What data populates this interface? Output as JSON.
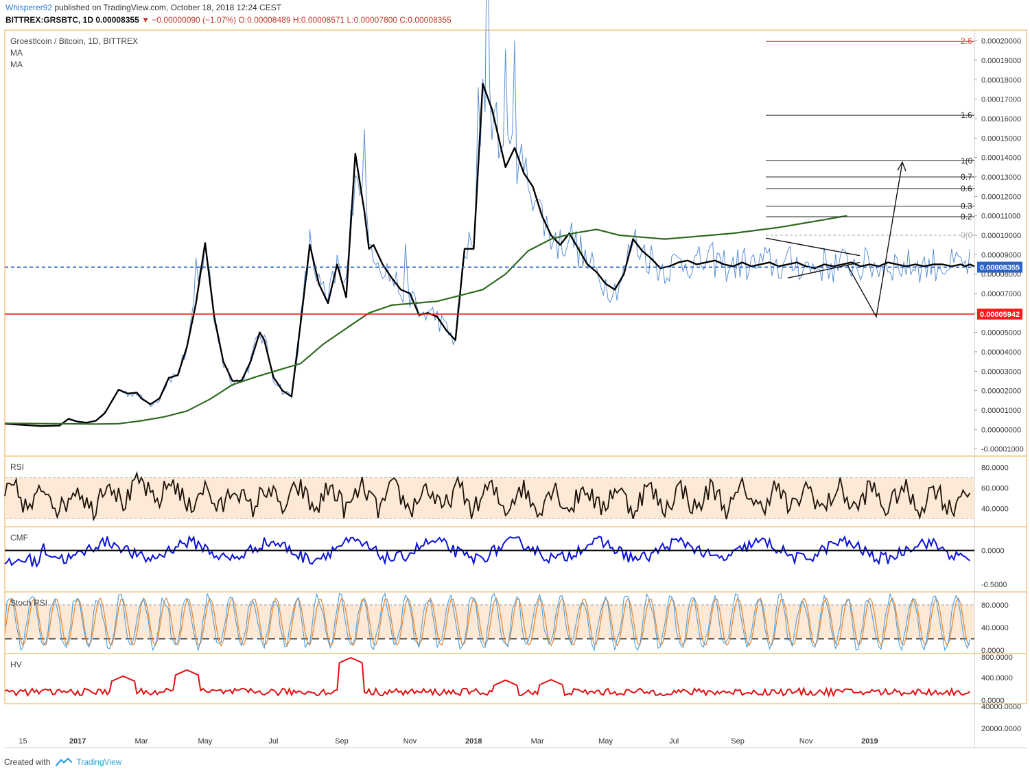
{
  "header": {
    "author": "Whisperer92",
    "published_text": "published on TradingView.com, October 18, 2018 12:24 CEST",
    "symbol_line": "BITTREX:GRSBTC, 1D 0.00008355",
    "change": "▼ −0.00000090 (−1.07%)",
    "ohlc": "O:0.00008489 H:0.00008571 L:0.00007800 C:0.00008355"
  },
  "legend": {
    "title": "Groestlcoin / Bitcoin, 1D, BITTREX",
    "ma1": "MA",
    "ma2": "MA"
  },
  "footer": {
    "created_with": "Created with",
    "brand": "TradingView"
  },
  "colors": {
    "price": "#5b8fd6",
    "ma_fast": "#000000",
    "ma_slow": "#2e6b1f",
    "support": "#ff1a1a",
    "current": "#2a63c7",
    "rsi": "#1a1209",
    "cmf": "#0b12d9",
    "stoch_k": "#4a9fe0",
    "stoch_d": "#e38a3c",
    "hv": "#e01010",
    "band_fill": "#fde9d6",
    "pane_border": "#f0a844"
  },
  "chart_data": [
    {
      "type": "line",
      "pane": "price",
      "title": "Groestlcoin / Bitcoin, 1D, BITTREX",
      "x_ticks": [
        "15",
        "2017",
        "Mar",
        "May",
        "Jul",
        "Sep",
        "Nov",
        "2018",
        "Mar",
        "May",
        "Jul",
        "Sep",
        "Nov",
        "2019"
      ],
      "y_ticks": [
        "0.00020000",
        "0.00019000",
        "0.00018000",
        "0.00017000",
        "0.00016000",
        "0.00015000",
        "0.00014000",
        "0.00013000",
        "0.00012000",
        "0.00011000",
        "0.00010000",
        "0.00009000",
        "0.00008000",
        "0.00007000",
        "0.00006000",
        "0.00005000",
        "0.00004000",
        "0.00003000",
        "0.00002000",
        "0.00001000",
        "0.00000000",
        "-0.00001000"
      ],
      "ylim": [
        -1.05e-05,
        0.000202
      ],
      "series": [
        {
          "name": "MA",
          "role": "ma_fast",
          "x": [
            0,
            3,
            8,
            12,
            14,
            16,
            18,
            20,
            22,
            25,
            27,
            29,
            30,
            32,
            34,
            36,
            38,
            40,
            42,
            44,
            46,
            48,
            50,
            52,
            54,
            56,
            57,
            59,
            61,
            63,
            65,
            67,
            69,
            71,
            73,
            75,
            77,
            79,
            80,
            81,
            83,
            85,
            87,
            89,
            91,
            93,
            95,
            97,
            99,
            101,
            103,
            105,
            107,
            108,
            110,
            112,
            114,
            116,
            118,
            120,
            122,
            124,
            126,
            128,
            130,
            132,
            134,
            136,
            138,
            140,
            142,
            144,
            146,
            148,
            150,
            152,
            154,
            156,
            158,
            160,
            162,
            164,
            166,
            168,
            170,
            172,
            174,
            176,
            178,
            180,
            182,
            184,
            186,
            188,
            190,
            192,
            194,
            196,
            198,
            200,
            202,
            204,
            206,
            208,
            210,
            211,
            212,
            213
          ],
          "values": [
            3e-06,
            2.5e-06,
            1.8e-06,
            2e-06,
            5.5e-06,
            4e-06,
            3.5e-06,
            4.5e-06,
            8.5e-06,
            2.05e-05,
            1.85e-05,
            1.9e-05,
            1.6e-05,
            1.3e-05,
            1.6e-05,
            2.65e-05,
            2.8e-05,
            4.25e-05,
            6.5e-05,
            9.6e-05,
            5.8e-05,
            3.5e-05,
            2.5e-05,
            2.5e-05,
            3.5e-05,
            5e-05,
            4.6e-05,
            2.7e-05,
            2e-05,
            1.7e-05,
            5.5e-05,
            9.5e-05,
            7.5e-05,
            6.5e-05,
            8.5e-05,
            6.8e-05,
            0.000142,
            0.000112,
            9.3e-05,
            9.5e-05,
            8.5e-05,
            7.8e-05,
            7.2e-05,
            7e-05,
            5.9e-05,
            6e-05,
            5.8e-05,
            5.1e-05,
            4.6e-05,
            9.3e-05,
            9.3e-05,
            0.000178,
            0.000165,
            0.000155,
            0.000135,
            0.000145,
            0.000132,
            0.000125,
            0.00011,
            0.0001,
            9.5e-05,
            0.000101,
            9.3e-05,
            8.5e-05,
            8.1e-05,
            7.5e-05,
            7.2e-05,
            8e-05,
            9.8e-05,
            9.2e-05,
            8.8e-05,
            8.3e-05,
            8.4e-05,
            8.6e-05,
            8.7e-05,
            8.5e-05,
            8.6e-05,
            8.7e-05,
            8.5e-05,
            8.4e-05,
            8.6e-05,
            8.4e-05,
            8.5e-05,
            8.6e-05,
            8.4e-05,
            8.5e-05,
            8.6e-05,
            8.4e-05,
            8.3e-05,
            8.5e-05,
            8.4e-05,
            8.5e-05,
            8.6e-05,
            8.4e-05,
            8.5e-05,
            8.4e-05,
            8.6e-05,
            8.5e-05,
            8.4e-05,
            8.5e-05,
            8.4e-05,
            8.5e-05,
            8.5e-05,
            8.4e-05,
            8.5e-05,
            8.4e-05,
            8.5e-05,
            8.4e-05
          ]
        },
        {
          "name": "MA",
          "role": "ma_slow",
          "x": [
            0,
            20,
            25,
            30,
            35,
            40,
            45,
            50,
            55,
            60,
            65,
            70,
            75,
            80,
            85,
            90,
            95,
            100,
            105,
            110,
            115,
            120,
            125,
            130,
            135,
            140,
            145,
            150,
            155,
            160,
            165,
            170,
            175,
            180,
            185
          ],
          "values": [
            3.2e-06,
            2.8e-06,
            3e-06,
            4.5e-06,
            6.5e-06,
            9.5e-06,
            1.55e-05,
            2.3e-05,
            2.7e-05,
            3.05e-05,
            3.4e-05,
            4.4e-05,
            5.2e-05,
            6e-05,
            6.4e-05,
            6.5e-05,
            6.6e-05,
            6.9e-05,
            7.2e-05,
            8e-05,
            9.2e-05,
            9.8e-05,
            0.000101,
            0.000103,
            0.0001,
            9.9e-05,
            9.8e-05,
            9.9e-05,
            0.0001,
            0.000101,
            0.0001025,
            0.000104,
            0.000106,
            0.000108,
            0.00011
          ]
        }
      ],
      "annotations": {
        "fib_levels": [
          {
            "label": "2.6",
            "value": 0.0001998
          },
          {
            "label": "1.6",
            "value": 0.0001617
          },
          {
            "label": "1(0",
            "value": 0.0001383
          },
          {
            "label": "0.7",
            "value": 0.00013
          },
          {
            "label": "0.6",
            "value": 0.000124
          },
          {
            "label": "0.3",
            "value": 0.000115
          },
          {
            "label": "0.2",
            "value": 0.0001095
          },
          {
            "label": "0(0",
            "value": 0.0001
          }
        ],
        "current_price": "0.00008355",
        "support_price": "0.00005942"
      }
    },
    {
      "type": "line",
      "pane": "rsi",
      "label": "RSI",
      "y_ticks": [
        "80.0000",
        "60.0000",
        "40.0000"
      ],
      "ylim": [
        23,
        91
      ],
      "band": [
        30,
        70
      ]
    },
    {
      "type": "line",
      "pane": "cmf",
      "label": "CMF",
      "y_ticks": [
        "0.0000",
        "-0.5000"
      ],
      "ylim": [
        -0.6,
        0.35
      ],
      "zero_line": 0
    },
    {
      "type": "line",
      "pane": "stoch",
      "label": "Stoch RSI",
      "y_ticks": [
        "80.0000",
        "40.0000",
        "0.0000"
      ],
      "ylim": [
        -5,
        103
      ],
      "band": [
        20,
        80
      ]
    },
    {
      "type": "line",
      "pane": "hv",
      "label": "HV",
      "y_ticks": [
        "800.0000",
        "400.0000",
        "0.0000",
        "40000.0000",
        "20000.0000"
      ]
    }
  ]
}
